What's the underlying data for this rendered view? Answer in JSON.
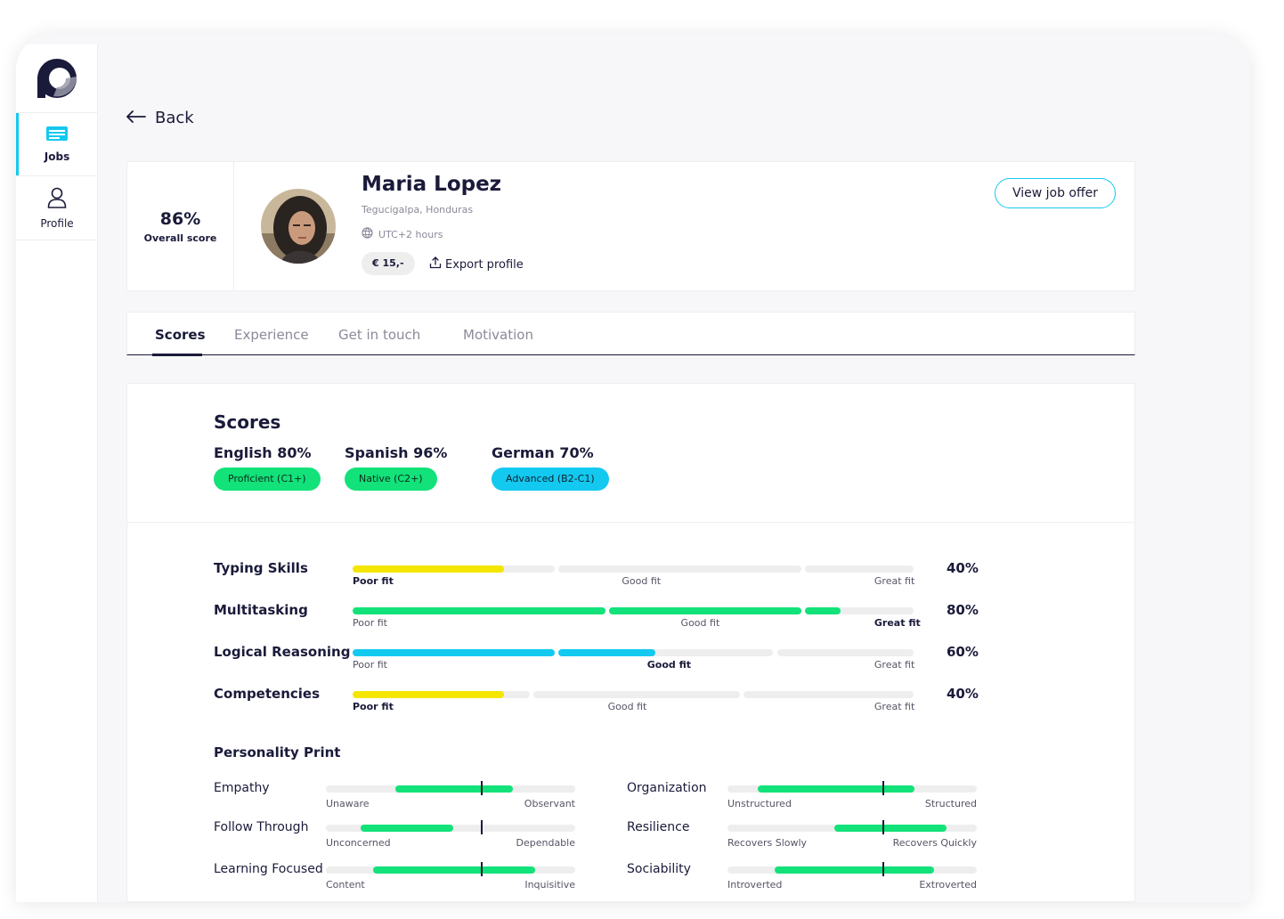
{
  "sidebar": {
    "items": [
      {
        "label": "Jobs",
        "icon": "jobs-icon",
        "active": true
      },
      {
        "label": "Profile",
        "icon": "user-icon",
        "active": false
      }
    ]
  },
  "back_label": "Back",
  "candidate": {
    "overall_score": "86%",
    "overall_label": "Overall score",
    "name": "Maria Lopez",
    "location": "Tegucigalpa, Honduras",
    "timezone": "UTC+2 hours",
    "price": "€ 15,-",
    "export_label": "Export profile",
    "view_offer_label": "View job offer"
  },
  "tabs": [
    {
      "label": "Scores",
      "active": true
    },
    {
      "label": "Experience",
      "active": false
    },
    {
      "label": "Get in touch",
      "active": false
    },
    {
      "label": "Motivation",
      "active": false
    }
  ],
  "scores": {
    "title": "Scores",
    "languages": [
      {
        "name": "English 80%",
        "level": "Proficient (C1+)",
        "color": "#12e279"
      },
      {
        "name": "Spanish 96%",
        "level": "Native (C2+)",
        "color": "#12e279"
      },
      {
        "name": "German 70%",
        "level": "Advanced (B2-C1)",
        "color": "#13c9f0"
      }
    ]
  },
  "skills": [
    {
      "name": "Typing Skills",
      "percent": "40%",
      "level": 0.27,
      "color": "#f5e600",
      "labels": [
        "Poor fit",
        "Good fit",
        "Great fit"
      ],
      "bold_label": 0
    },
    {
      "name": "Multitasking",
      "percent": "80%",
      "level": 0.87,
      "color": "#12e279",
      "labels": [
        "Poor fit",
        "Good fit",
        "Great fit"
      ],
      "bold_label": 2
    },
    {
      "name": "Logical Reasoning",
      "percent": "60%",
      "level": 0.54,
      "color": "#13c9f0",
      "labels": [
        "Poor fit",
        "Good fit",
        "Great fit"
      ],
      "bold_label": 1
    },
    {
      "name": "Competencies",
      "percent": "40%",
      "level": 0.27,
      "color": "#f5e600",
      "labels": [
        "Poor fit",
        "Good fit",
        "Great fit"
      ],
      "bold_label": 0
    }
  ],
  "personality": {
    "title": "Personality Print",
    "traits": [
      {
        "name": "Empathy",
        "low": "Unaware",
        "high": "Observant",
        "fill_start": 0.28,
        "fill_end": 0.75,
        "marker": 0.62
      },
      {
        "name": "Organization",
        "low": "Unstructured",
        "high": "Structured",
        "fill_start": 0.12,
        "fill_end": 0.75,
        "marker": 0.62
      },
      {
        "name": "Follow Through",
        "low": "Unconcerned",
        "high": "Dependable",
        "fill_start": 0.14,
        "fill_end": 0.51,
        "marker": 0.62
      },
      {
        "name": "Resilience",
        "low": "Recovers Slowly",
        "high": "Recovers Quickly",
        "fill_start": 0.43,
        "fill_end": 0.88,
        "marker": 0.62
      },
      {
        "name": "Learning Focused",
        "low": "Content",
        "high": "Inquisitive",
        "fill_start": 0.19,
        "fill_end": 0.84,
        "marker": 0.62
      },
      {
        "name": "Sociability",
        "low": "Introverted",
        "high": "Extroverted",
        "fill_start": 0.19,
        "fill_end": 0.83,
        "marker": 0.62
      }
    ]
  },
  "colors": {
    "accent": "#13c9f0",
    "green": "#12e279",
    "yellow": "#f5e600",
    "text": "#1a1a3a"
  }
}
